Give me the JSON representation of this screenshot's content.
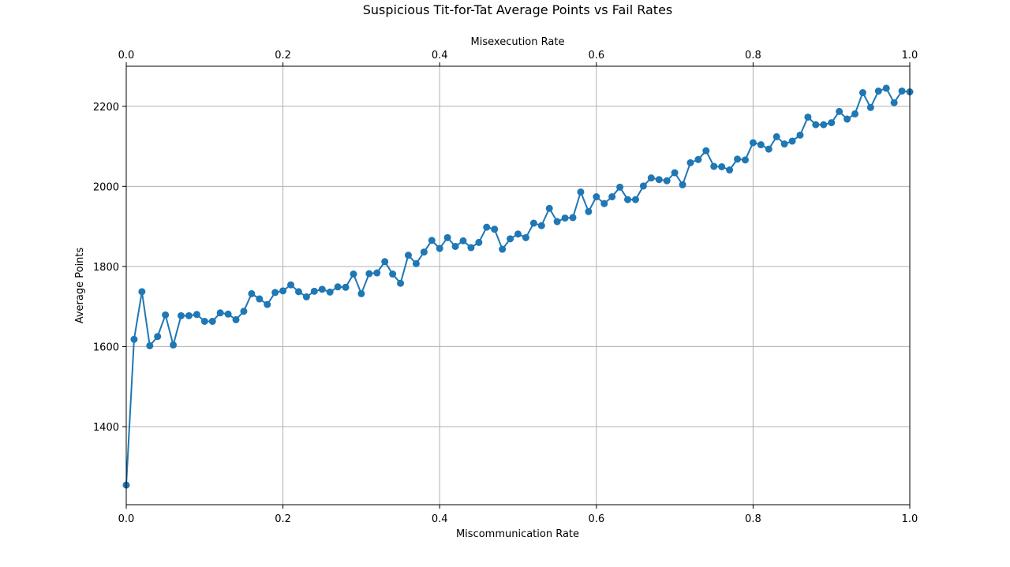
{
  "chart_data": {
    "type": "line",
    "title": "Suspicious Tit-for-Tat Average Points vs Fail Rates",
    "xlabel": "Miscommunication Rate",
    "ylabel": "Average Points",
    "secondary_xlabel": "Misexecution Rate",
    "xlim": [
      0,
      1
    ],
    "ylim": [
      1205,
      2300
    ],
    "xticks": [
      "0.0",
      "0.2",
      "0.4",
      "0.6",
      "0.8",
      "1.0"
    ],
    "secondary_xticks": [
      "0.0",
      "0.2",
      "0.4",
      "0.6",
      "0.8",
      "1.0"
    ],
    "yticks": [
      "1400",
      "1600",
      "1800",
      "2000",
      "2200"
    ],
    "grid": true,
    "marker": "circle",
    "color": "#1f77b4",
    "x": [
      0.0,
      0.01,
      0.02,
      0.03,
      0.04,
      0.05,
      0.06,
      0.07,
      0.08,
      0.09,
      0.1,
      0.11,
      0.12,
      0.13,
      0.14,
      0.15,
      0.16,
      0.17,
      0.18,
      0.19,
      0.2,
      0.21,
      0.22,
      0.23,
      0.24,
      0.25,
      0.26,
      0.27,
      0.28,
      0.29,
      0.3,
      0.31,
      0.32,
      0.33,
      0.34,
      0.35,
      0.36,
      0.37,
      0.38,
      0.39,
      0.4,
      0.41,
      0.42,
      0.43,
      0.44,
      0.45,
      0.46,
      0.47,
      0.48,
      0.49,
      0.5,
      0.51,
      0.52,
      0.53,
      0.54,
      0.55,
      0.56,
      0.57,
      0.58,
      0.59,
      0.6,
      0.61,
      0.62,
      0.63,
      0.64,
      0.65,
      0.66,
      0.67,
      0.68,
      0.69,
      0.7,
      0.71,
      0.72,
      0.73,
      0.74,
      0.75,
      0.76,
      0.77,
      0.78,
      0.79,
      0.8,
      0.81,
      0.82,
      0.83,
      0.84,
      0.85,
      0.86,
      0.87,
      0.88,
      0.89,
      0.9,
      0.91,
      0.92,
      0.93,
      0.94,
      0.95,
      0.96,
      0.97,
      0.98,
      0.99,
      1.0
    ],
    "y": [
      1254,
      1618,
      1737,
      1602,
      1625,
      1679,
      1604,
      1677,
      1677,
      1680,
      1663,
      1663,
      1684,
      1681,
      1667,
      1688,
      1732,
      1719,
      1705,
      1735,
      1739,
      1754,
      1737,
      1724,
      1738,
      1743,
      1736,
      1749,
      1748,
      1781,
      1732,
      1782,
      1784,
      1812,
      1781,
      1758,
      1828,
      1807,
      1836,
      1865,
      1845,
      1872,
      1850,
      1864,
      1847,
      1860,
      1898,
      1893,
      1843,
      1869,
      1881,
      1872,
      1908,
      1902,
      1945,
      1912,
      1921,
      1922,
      1986,
      1937,
      1974,
      1957,
      1974,
      1998,
      1967,
      1967,
      2001,
      2021,
      2017,
      2014,
      2034,
      2004,
      2059,
      2067,
      2089,
      2050,
      2049,
      2041,
      2068,
      2066,
      2109,
      2104,
      2093,
      2124,
      2106,
      2113,
      2128,
      2173,
      2154,
      2154,
      2159,
      2187,
      2168,
      2181,
      2234,
      2197,
      2238,
      2245,
      2209,
      2238,
      2236
    ]
  }
}
